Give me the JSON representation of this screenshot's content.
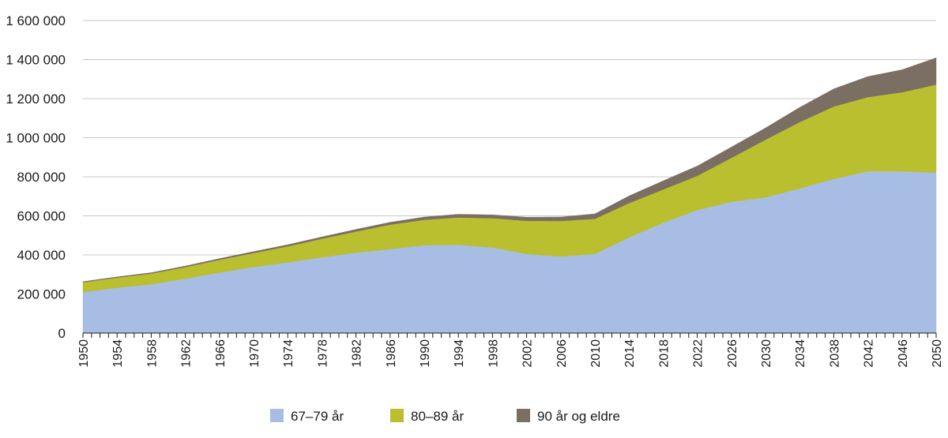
{
  "chart_data": {
    "type": "area",
    "stacked": true,
    "title": "",
    "xlabel": "",
    "ylabel": "",
    "xlim": [
      1950,
      2050
    ],
    "ylim": [
      0,
      1600000
    ],
    "y_ticks": [
      0,
      200000,
      400000,
      600000,
      800000,
      1000000,
      1200000,
      1400000,
      1600000
    ],
    "y_tick_labels": [
      "0",
      "200 000",
      "400 000",
      "600 000",
      "800 000",
      "1 000 000",
      "1 200 000",
      "1 400 000",
      "1 600 000"
    ],
    "x_tick_labels": [
      "1950",
      "1954",
      "1958",
      "1962",
      "1966",
      "1970",
      "1974",
      "1978",
      "1982",
      "1986",
      "1990",
      "1994",
      "1998",
      "2002",
      "2006",
      "2010",
      "2014",
      "2018",
      "2022",
      "2026",
      "2030",
      "2034",
      "2038",
      "2042",
      "2046",
      "2050"
    ],
    "grid": true,
    "legend_position": "bottom",
    "x": [
      1950,
      1954,
      1958,
      1962,
      1966,
      1970,
      1974,
      1978,
      1982,
      1986,
      1990,
      1994,
      1998,
      2002,
      2006,
      2010,
      2014,
      2018,
      2022,
      2026,
      2030,
      2034,
      2038,
      2042,
      2046,
      2050
    ],
    "series": [
      {
        "name": "67–79 år",
        "color": "#a8bde3",
        "values": [
          210000,
          232000,
          250000,
          278000,
          310000,
          338000,
          362000,
          388000,
          412000,
          430000,
          450000,
          452000,
          438000,
          405000,
          392000,
          405000,
          490000,
          565000,
          630000,
          672000,
          695000,
          740000,
          790000,
          828000,
          828000,
          822000
        ]
      },
      {
        "name": "80–89 år",
        "color": "#b9bf2e",
        "values": [
          50000,
          52000,
          55000,
          60000,
          65000,
          72000,
          82000,
          95000,
          108000,
          125000,
          130000,
          140000,
          150000,
          170000,
          182000,
          180000,
          175000,
          170000,
          175000,
          225000,
          295000,
          340000,
          370000,
          380000,
          405000,
          450000
        ]
      },
      {
        "name": "90 år og eldre",
        "color": "#7b6f63",
        "values": [
          3000,
          3500,
          4000,
          5000,
          6000,
          7000,
          8000,
          9000,
          10500,
          12000,
          14000,
          16000,
          17000,
          18000,
          20000,
          25000,
          37000,
          44000,
          50000,
          55000,
          60000,
          75000,
          90000,
          105000,
          115000,
          137000
        ]
      }
    ]
  }
}
